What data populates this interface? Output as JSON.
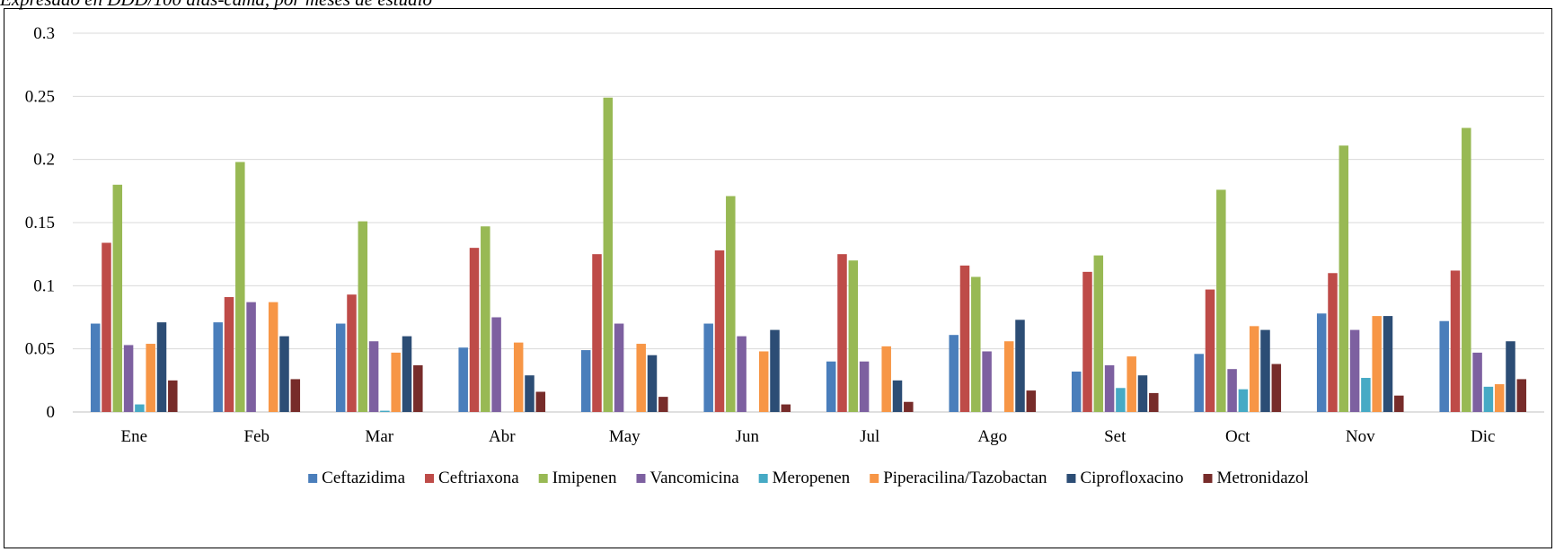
{
  "caption": "Expresado en DDD/100 días-cama, por meses de estudio",
  "chart_data": {
    "type": "bar",
    "title": "",
    "xlabel": "",
    "ylabel": "",
    "ylim": [
      0,
      0.3
    ],
    "yticks": [
      "0",
      "0.05",
      "0.1",
      "0.15",
      "0.2",
      "0.25",
      "0.3"
    ],
    "grid": true,
    "legend_position": "bottom",
    "categories": [
      "Ene",
      "Feb",
      "Mar",
      "Abr",
      "May",
      "Jun",
      "Jul",
      "Ago",
      "Set",
      "Oct",
      "Nov",
      "Dic"
    ],
    "series": [
      {
        "name": "Ceftazidima",
        "color": "#4a7ebb",
        "values": [
          0.07,
          0.071,
          0.07,
          0.051,
          0.049,
          0.07,
          0.04,
          0.061,
          0.032,
          0.046,
          0.078,
          0.072
        ]
      },
      {
        "name": "Ceftriaxona",
        "color": "#be4b48",
        "values": [
          0.134,
          0.091,
          0.093,
          0.13,
          0.125,
          0.128,
          0.125,
          0.116,
          0.111,
          0.097,
          0.11,
          0.112
        ]
      },
      {
        "name": "Imipenen",
        "color": "#98b954",
        "values": [
          0.18,
          0.198,
          0.151,
          0.147,
          0.249,
          0.171,
          0.12,
          0.107,
          0.124,
          0.176,
          0.211,
          0.225
        ]
      },
      {
        "name": "Vancomicina",
        "color": "#7d60a0",
        "values": [
          0.053,
          0.087,
          0.056,
          0.075,
          0.07,
          0.06,
          0.04,
          0.048,
          0.037,
          0.034,
          0.065,
          0.047
        ]
      },
      {
        "name": "Meropenen",
        "color": "#46aac5",
        "values": [
          0.006,
          0,
          0.001,
          0,
          0,
          0,
          0,
          0,
          0.019,
          0.018,
          0.027,
          0.02
        ]
      },
      {
        "name": "Piperacilina/Tazobactan",
        "color": "#f79646",
        "values": [
          0.054,
          0.087,
          0.047,
          0.055,
          0.054,
          0.048,
          0.052,
          0.056,
          0.044,
          0.068,
          0.076,
          0.022
        ]
      },
      {
        "name": "Ciprofloxacino",
        "color": "#2c4d75",
        "values": [
          0.071,
          0.06,
          0.06,
          0.029,
          0.045,
          0.065,
          0.025,
          0.073,
          0.029,
          0.065,
          0.076,
          0.056
        ]
      },
      {
        "name": "Metronidazol",
        "color": "#772c2a",
        "values": [
          0.025,
          0.026,
          0.037,
          0.016,
          0.012,
          0.006,
          0.008,
          0.017,
          0.015,
          0.038,
          0.013,
          0.026
        ]
      }
    ]
  }
}
